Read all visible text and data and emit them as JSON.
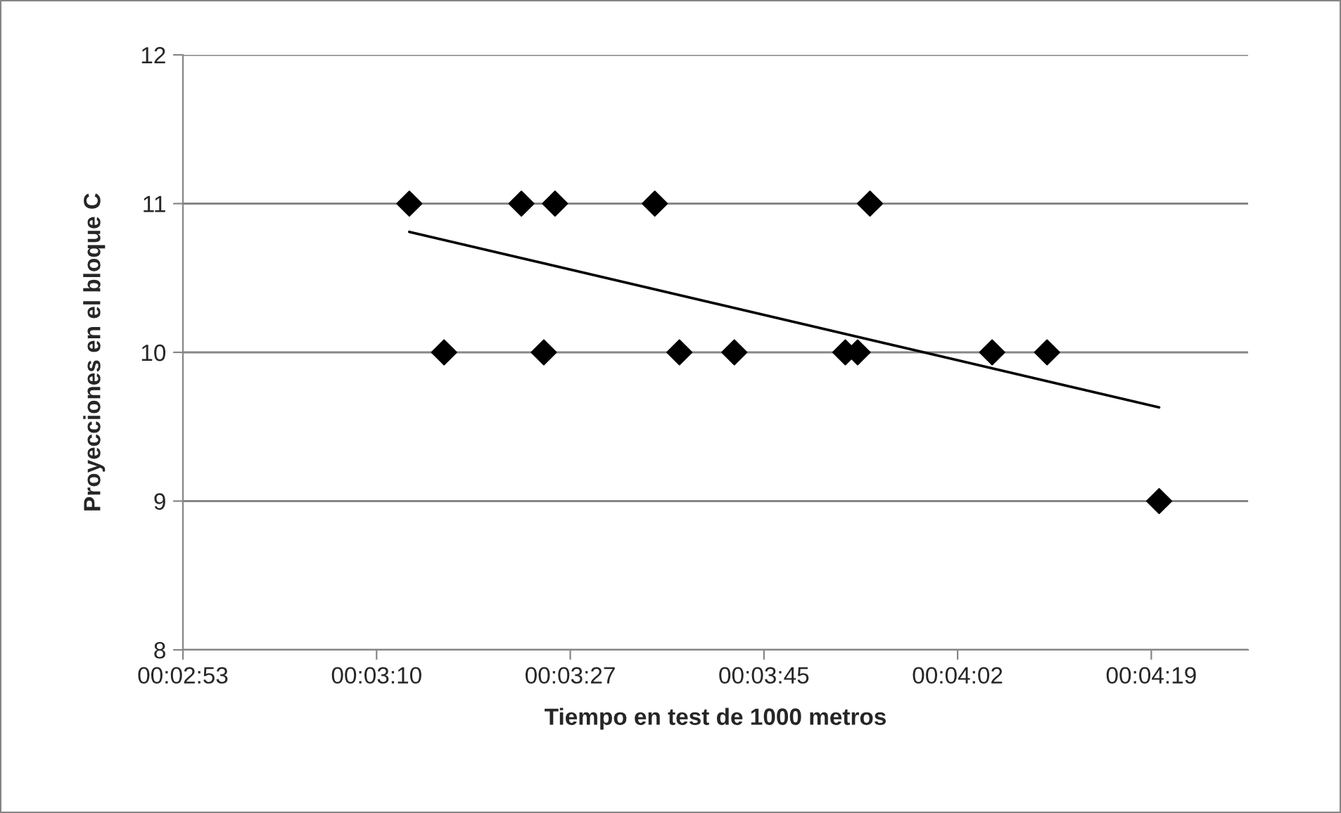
{
  "chart_data": {
    "type": "scatter",
    "xlabel": "Tiempo en test de 1000 metros",
    "ylabel": "Proyecciones en el bloque C",
    "series": [
      {
        "color": "#000000",
        "marker": "diamond",
        "x": [
          193.0,
          196.1,
          203.0,
          205.0,
          206.0,
          214.9,
          217.1,
          222.0,
          231.9,
          233.0,
          234.1,
          245.0,
          249.9,
          259.9
        ],
        "values": [
          11,
          10,
          11,
          10,
          11,
          11,
          10,
          10,
          10,
          10,
          11,
          10,
          10,
          9
        ]
      },
      {
        "type": "line",
        "color": "#000000",
        "marker": "none",
        "x": [
          193.0,
          259.9
        ],
        "values": [
          10.81,
          9.63
        ]
      }
    ],
    "xlim": [
      172.8,
      267.84
    ],
    "xticks": [
      {
        "value": 172.8,
        "label": "00:02:53"
      },
      {
        "value": 190.08,
        "label": "00:03:10"
      },
      {
        "value": 207.36,
        "label": "00:03:27"
      },
      {
        "value": 224.64,
        "label": "00:03:45"
      },
      {
        "value": 241.92,
        "label": "00:04:02"
      },
      {
        "value": 259.2,
        "label": "00:04:19"
      }
    ],
    "ylim": [
      8,
      12
    ],
    "yticks": [
      8,
      9,
      10,
      11,
      12
    ],
    "grid": "y",
    "legend": false
  }
}
